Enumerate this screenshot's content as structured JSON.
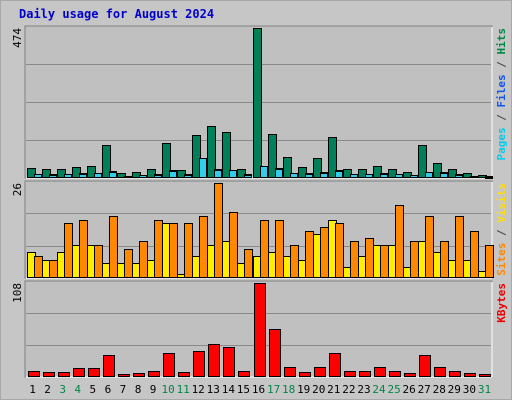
{
  "chart_data": [
    {
      "type": "bar",
      "title": "Daily usage for August 2024",
      "ymax_label": "474",
      "legend": [
        {
          "text": "Pages",
          "color": "#00ccee"
        },
        {
          "text": " / ",
          "color": "#444444"
        },
        {
          "text": "Files",
          "color": "#1155ee"
        },
        {
          "text": " / ",
          "color": "#444444"
        },
        {
          "text": "Hits",
          "color": "#008844"
        }
      ],
      "categories": [
        "1",
        "2",
        "3",
        "4",
        "5",
        "6",
        "7",
        "8",
        "9",
        "10",
        "11",
        "12",
        "13",
        "14",
        "15",
        "16",
        "17",
        "18",
        "19",
        "20",
        "21",
        "22",
        "23",
        "24",
        "25",
        "26",
        "27",
        "28",
        "29",
        "30",
        "31"
      ],
      "ylim": [
        0,
        474
      ],
      "series": [
        {
          "name": "Hits",
          "color": "#00805a",
          "values": [
            32,
            28,
            30,
            35,
            38,
            105,
            15,
            20,
            30,
            110,
            25,
            135,
            165,
            145,
            28,
            474,
            140,
            65,
            35,
            62,
            130,
            30,
            30,
            38,
            30,
            18,
            105,
            48,
            28,
            15,
            10
          ]
        },
        {
          "name": "Files",
          "color": "#1e4f9c",
          "values": [
            14,
            13,
            14,
            16,
            17,
            22,
            7,
            9,
            13,
            24,
            12,
            58,
            28,
            26,
            12,
            30,
            32,
            17,
            15,
            19,
            24,
            14,
            14,
            16,
            14,
            9,
            20,
            18,
            13,
            7,
            5
          ]
        },
        {
          "name": "Pages",
          "color": "#33ccee",
          "values": [
            12,
            11,
            12,
            14,
            15,
            20,
            6,
            8,
            11,
            22,
            10,
            62,
            25,
            24,
            10,
            38,
            28,
            15,
            13,
            17,
            22,
            12,
            12,
            14,
            12,
            8,
            18,
            16,
            11,
            6,
            4
          ]
        }
      ]
    },
    {
      "type": "bar",
      "ymax_label": "26",
      "legend": [
        {
          "text": "Sites",
          "color": "#ff8800"
        },
        {
          "text": " / ",
          "color": "#444444"
        },
        {
          "text": "Visits",
          "color": "#ffdd00"
        }
      ],
      "categories": [
        "1",
        "2",
        "3",
        "4",
        "5",
        "6",
        "7",
        "8",
        "9",
        "10",
        "11",
        "12",
        "13",
        "14",
        "15",
        "16",
        "17",
        "18",
        "19",
        "20",
        "21",
        "22",
        "23",
        "24",
        "25",
        "26",
        "27",
        "28",
        "29",
        "30",
        "31"
      ],
      "ylim": [
        0,
        26
      ],
      "series": [
        {
          "name": "Visits",
          "color": "#ffee00",
          "values": [
            7,
            5,
            7,
            9,
            9,
            4,
            4,
            4,
            5,
            15,
            1,
            6,
            9,
            10,
            4,
            6,
            7,
            6,
            5,
            12,
            16,
            3,
            6,
            9,
            9,
            3,
            10,
            7,
            5,
            5,
            2
          ]
        },
        {
          "name": "Sites",
          "color": "#ff8800",
          "values": [
            6,
            5,
            15,
            16,
            9,
            17,
            8,
            10,
            16,
            15,
            15,
            17,
            26,
            18,
            8,
            16,
            16,
            9,
            13,
            14,
            15,
            10,
            11,
            9,
            20,
            10,
            17,
            10,
            17,
            13,
            9
          ]
        }
      ]
    },
    {
      "type": "bar",
      "ymax_label": "108",
      "legend": [
        {
          "text": "KBytes",
          "color": "#ee0000"
        }
      ],
      "categories": [
        "1",
        "2",
        "3",
        "4",
        "5",
        "6",
        "7",
        "8",
        "9",
        "10",
        "11",
        "12",
        "13",
        "14",
        "15",
        "16",
        "17",
        "18",
        "19",
        "20",
        "21",
        "22",
        "23",
        "24",
        "25",
        "26",
        "27",
        "28",
        "29",
        "30",
        "31"
      ],
      "ylim": [
        0,
        108
      ],
      "series": [
        {
          "name": "KBytes",
          "color": "#ff0000",
          "values": [
            7,
            6,
            6,
            10,
            10,
            25,
            3,
            5,
            7,
            28,
            6,
            30,
            38,
            34,
            7,
            108,
            55,
            12,
            6,
            12,
            28,
            7,
            7,
            11,
            7,
            5,
            25,
            12,
            7,
            5,
            4
          ]
        }
      ]
    }
  ],
  "x_axis": {
    "labels": [
      "1",
      "2",
      "3",
      "4",
      "5",
      "6",
      "7",
      "8",
      "9",
      "10",
      "11",
      "12",
      "13",
      "14",
      "15",
      "16",
      "17",
      "18",
      "19",
      "20",
      "21",
      "22",
      "23",
      "24",
      "25",
      "26",
      "27",
      "28",
      "29",
      "30",
      "31"
    ],
    "weekend_days": [
      3,
      4,
      10,
      11,
      17,
      18,
      24,
      25,
      31
    ],
    "weekday_color": "#000000",
    "weekend_color": "#008844"
  },
  "colors": {
    "panel_bg": "#c0c0c0",
    "outer_bg": "#c6c6c6",
    "grid": "#8a8a8a"
  }
}
